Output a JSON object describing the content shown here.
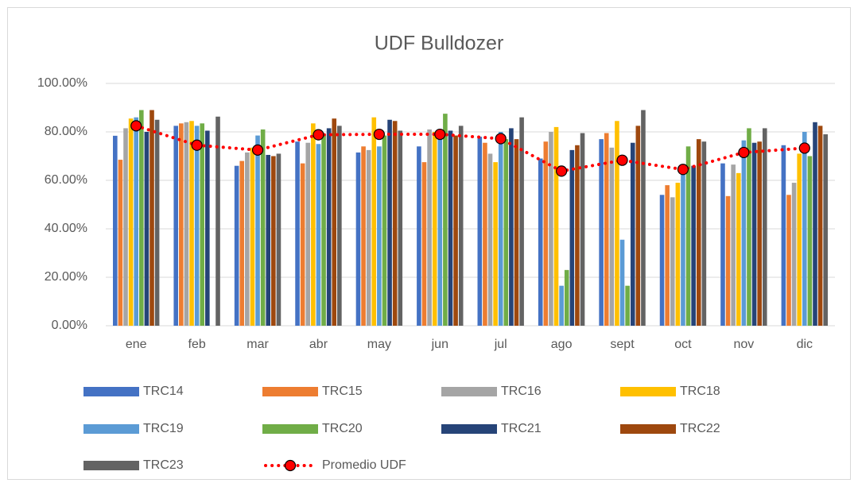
{
  "chart_data": {
    "type": "bar",
    "title": "UDF Bulldozer",
    "categories": [
      "ene",
      "feb",
      "mar",
      "abr",
      "may",
      "jun",
      "jul",
      "ago",
      "sept",
      "oct",
      "nov",
      "dic"
    ],
    "ylim": [
      0,
      100
    ],
    "yticks": [
      {
        "value": 0,
        "label": "0.00%"
      },
      {
        "value": 20,
        "label": "20.00%"
      },
      {
        "value": 40,
        "label": "40.00%"
      },
      {
        "value": 60,
        "label": "60.00%"
      },
      {
        "value": 80,
        "label": "80.00%"
      },
      {
        "value": 100,
        "label": "100.00%"
      }
    ],
    "grid": true,
    "legend": "bottom",
    "series": [
      {
        "name": "TRC14",
        "color": "#4472c4",
        "values": [
          78.4,
          82.5,
          66,
          76,
          71.5,
          74,
          78,
          69,
          77,
          54,
          67,
          74.5
        ]
      },
      {
        "name": "TRC15",
        "color": "#ed7d31",
        "values": [
          68.5,
          83.5,
          68,
          67,
          74,
          67.5,
          75.5,
          76,
          79.5,
          58,
          53.5,
          54
        ]
      },
      {
        "name": "TRC16",
        "color": "#a5a5a5",
        "values": [
          81.5,
          84,
          71.5,
          75.5,
          72.5,
          81,
          71,
          80,
          73.5,
          53,
          66.5,
          59
        ]
      },
      {
        "name": "TRC18",
        "color": "#ffc000",
        "values": [
          85.5,
          84.5,
          73.5,
          83.5,
          86,
          80,
          67.5,
          82,
          84.5,
          59,
          63,
          71
        ]
      },
      {
        "name": "TRC19",
        "color": "#5b9bd5",
        "values": [
          86,
          82.5,
          78.5,
          75,
          74,
          79,
          80,
          16.5,
          35.5,
          63,
          76.5,
          80
        ]
      },
      {
        "name": "TRC20",
        "color": "#70ad47",
        "values": [
          89,
          83.5,
          81,
          79,
          78.5,
          87.5,
          77,
          23,
          16.5,
          74,
          81.5,
          70
        ]
      },
      {
        "name": "TRC21",
        "color": "#264478",
        "values": [
          80,
          80.5,
          70.5,
          81.5,
          85,
          80.5,
          81.5,
          72.5,
          75.5,
          66,
          75.5,
          84
        ]
      },
      {
        "name": "TRC22",
        "color": "#9e480e",
        "values": [
          89,
          null,
          70,
          85.5,
          84.5,
          78.5,
          77,
          74.5,
          82.5,
          77,
          76,
          82.5
        ]
      },
      {
        "name": "TRC23",
        "color": "#636363",
        "values": [
          85,
          86.3,
          71,
          82.5,
          80.5,
          82.5,
          86,
          79.5,
          89,
          76,
          81.5,
          79
        ]
      },
      {
        "name": "Promedio UDF",
        "type": "line",
        "color": "#ff0000",
        "values": [
          82.5,
          74.5,
          72.5,
          78.8,
          79,
          79,
          77.2,
          63.8,
          68.3,
          64.5,
          71.5,
          73.3
        ]
      }
    ]
  }
}
